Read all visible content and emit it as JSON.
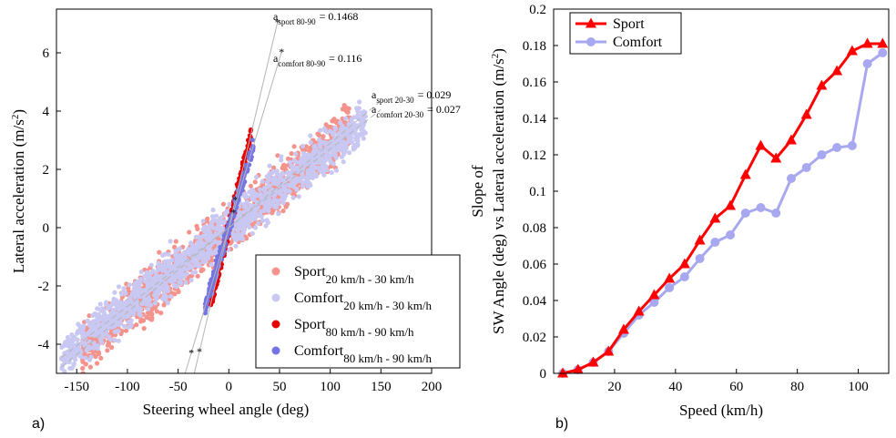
{
  "panel_a_label": "a)",
  "panel_b_label": "b)",
  "colors": {
    "sport_light": "#f4928c",
    "comfort_light": "#c8c8f2",
    "sport_dark": "#e60000",
    "comfort_dark": "#7474e4",
    "fit_line": "#b4b4b4",
    "sport_line": "#ff0000",
    "comfort_line": "#a8a8f0"
  },
  "chart_data": [
    {
      "id": "a",
      "type": "scatter",
      "xlabel": "Steering wheel angle (deg)",
      "ylabel": "Lateral acceleration (m/s^2)",
      "ylabel_parts": {
        "main": "Lateral acceleration (m/s",
        "sup": "2",
        "end": ")"
      },
      "xlim": [
        -170,
        200
      ],
      "ylim": [
        -5,
        7.5
      ],
      "xticks": [
        -150,
        -100,
        -50,
        0,
        50,
        100,
        150,
        200
      ],
      "xtick_labels": [
        "-150",
        "-100",
        "-50",
        "0",
        "50",
        "100",
        "150",
        "200"
      ],
      "yticks": [
        -4,
        -2,
        0,
        2,
        4,
        6
      ],
      "ytick_labels": [
        "-4",
        "-2",
        "0",
        "2",
        "4",
        "6"
      ],
      "legend_position": "bottom-right",
      "series": [
        {
          "key": "sport_20_30",
          "name": "Sport",
          "sub": "20 km/h - 30 km/h",
          "color": "#f4928c",
          "x_range": [
            -145,
            120
          ],
          "slope": 0.029,
          "spread": 0.75
        },
        {
          "key": "comfort_20_30",
          "name": "Comfort",
          "sub": "20 km/h - 30 km/h",
          "color": "#c8c8f2",
          "x_range": [
            -165,
            135
          ],
          "slope": 0.027,
          "spread": 0.7
        },
        {
          "key": "sport_80_90",
          "name": "Sport",
          "sub": "80 km/h - 90 km/h",
          "color": "#e60000",
          "x_range": [
            -18,
            22
          ],
          "slope": 0.1468,
          "spread": 0.25
        },
        {
          "key": "comfort_80_90",
          "name": "Comfort",
          "sub": "80 km/h - 90 km/h",
          "color": "#7474e4",
          "x_range": [
            -24,
            24
          ],
          "slope": 0.116,
          "spread": 0.25
        }
      ],
      "fit_lines": [
        {
          "main": "a",
          "sub": "sport 80-90",
          "value": "= 0.1468",
          "slope": 0.1468,
          "x": [
            -35,
            48
          ],
          "dashed": false
        },
        {
          "main": "a",
          "sub": "comfort 80-90",
          "value": "= 0.116",
          "slope": 0.116,
          "x": [
            -43,
            52
          ],
          "dashed": false
        },
        {
          "main": "a",
          "sub": "sport 20-30",
          "value": "= 0.029",
          "slope": 0.029,
          "x": [
            -165,
            150
          ],
          "dashed": true
        },
        {
          "main": "a",
          "sub": "comfort 20-30",
          "value": "= 0.027",
          "slope": 0.027,
          "x": [
            -165,
            150
          ],
          "dashed": true
        }
      ]
    },
    {
      "id": "b",
      "type": "line",
      "xlabel": "Speed (km/h)",
      "ylabel_line1": "Slope of",
      "ylabel_line2": "SW Angle (deg) vs Lateral acceleration (m/s^2)",
      "ylabel_parts": {
        "main": "SW Angle (deg) vs Lateral acceleration (m/s",
        "sup": "2",
        "end": ")"
      },
      "xlim": [
        0,
        110
      ],
      "ylim": [
        0,
        0.2
      ],
      "xticks": [
        20,
        40,
        60,
        80,
        100
      ],
      "xtick_labels": [
        "20",
        "40",
        "60",
        "80",
        "100"
      ],
      "yticks": [
        0,
        0.02,
        0.04,
        0.06,
        0.08,
        0.1,
        0.12,
        0.14,
        0.16,
        0.18,
        0.2
      ],
      "ytick_labels": [
        "0",
        "0.02",
        "0.04",
        "0.06",
        "0.08",
        "0.1",
        "0.12",
        "0.14",
        "0.16",
        "0.18",
        "0.2"
      ],
      "legend_position": "top-left",
      "x": [
        3,
        8,
        13,
        18,
        23,
        28,
        33,
        38,
        43,
        48,
        53,
        58,
        63,
        68,
        73,
        78,
        83,
        88,
        93,
        98,
        103,
        108
      ],
      "series": [
        {
          "name": "Sport",
          "marker": "triangle",
          "color": "#ff0000",
          "values": [
            0.0,
            0.002,
            0.006,
            0.012,
            0.024,
            0.034,
            0.043,
            0.052,
            0.06,
            0.073,
            0.085,
            0.092,
            0.109,
            0.125,
            0.118,
            0.128,
            0.142,
            0.158,
            0.166,
            0.177,
            0.181,
            0.181
          ]
        },
        {
          "name": "Comfort",
          "marker": "circle",
          "color": "#a8a8f0",
          "values": [
            0.0,
            0.002,
            0.006,
            0.012,
            0.022,
            0.032,
            0.039,
            0.047,
            0.053,
            0.063,
            0.072,
            0.076,
            0.088,
            0.091,
            0.088,
            0.107,
            0.113,
            0.12,
            0.124,
            0.125,
            0.17,
            0.176
          ]
        }
      ]
    }
  ]
}
